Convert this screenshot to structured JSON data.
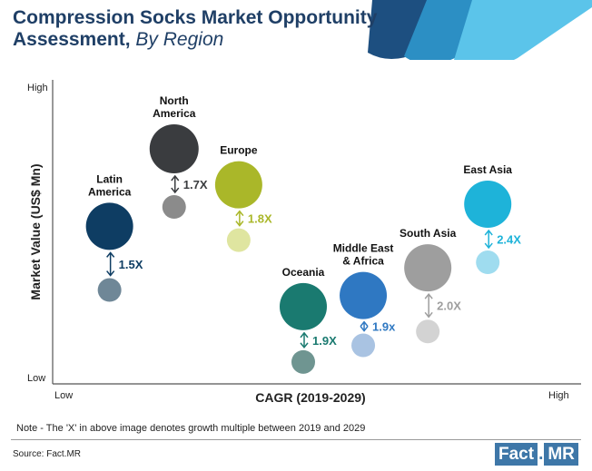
{
  "title": {
    "main": "Compression Socks Market Opportunity",
    "line2": "Assessment,",
    "line2_italic": "By Region"
  },
  "colors": {
    "title": "#1f3f66",
    "header_stripes": [
      "#1d4f80",
      "#2c8fc4",
      "#5bc4ea"
    ]
  },
  "chart_data": {
    "type": "bubble",
    "xlabel": "CAGR (2019-2029)",
    "ylabel": "Market Value (US$ Mn)",
    "x_tick_labels": [
      "Low",
      "High"
    ],
    "y_tick_labels": [
      "Low",
      "High"
    ],
    "grid": false,
    "series": [
      {
        "name": "Latin America",
        "label_lines": [
          "Latin",
          "America"
        ],
        "multiple_label": "1.5X",
        "color": "#0e3d63",
        "color_2019": "#6f8797",
        "x": 0.08,
        "y_2029": 0.52,
        "y_2019": 0.29,
        "size_2029": 26,
        "size_2019": 13
      },
      {
        "name": "North America",
        "label_lines": [
          "North",
          "America"
        ],
        "multiple_label": "1.7X",
        "color": "#3a3c3f",
        "color_2019": "#8b8b8b",
        "x": 0.22,
        "y_2029": 0.8,
        "y_2019": 0.59,
        "size_2029": 27,
        "size_2019": 13
      },
      {
        "name": "Europe",
        "label_lines": [
          "Europe"
        ],
        "multiple_label": "1.8X",
        "color": "#aab729",
        "color_2019": "#dfe5a0",
        "x": 0.36,
        "y_2029": 0.67,
        "y_2019": 0.47,
        "size_2029": 26,
        "size_2019": 13
      },
      {
        "name": "Oceania",
        "label_lines": [
          "Oceania"
        ],
        "multiple_label": "1.9X",
        "color": "#1a7a70",
        "color_2019": "#6f9591",
        "x": 0.5,
        "y_2029": 0.23,
        "y_2019": 0.03,
        "size_2029": 26,
        "size_2019": 13
      },
      {
        "name": "Middle East & Africa",
        "label_lines": [
          "Middle East",
          "& Africa"
        ],
        "multiple_label": "1.9x",
        "color": "#2f78c2",
        "color_2019": "#a9c3e2",
        "x": 0.63,
        "y_2029": 0.27,
        "y_2019": 0.09,
        "size_2029": 26,
        "size_2019": 13
      },
      {
        "name": "South Asia",
        "label_lines": [
          "South Asia"
        ],
        "multiple_label": "2.0X",
        "color": "#9e9e9e",
        "color_2019": "#d3d3d3",
        "x": 0.77,
        "y_2029": 0.37,
        "y_2019": 0.14,
        "size_2029": 26,
        "size_2019": 13
      },
      {
        "name": "East Asia",
        "label_lines": [
          "East Asia"
        ],
        "multiple_label": "2.4X",
        "color": "#1eb3d9",
        "color_2019": "#9fdcef",
        "x": 0.9,
        "y_2029": 0.6,
        "y_2019": 0.39,
        "size_2029": 26,
        "size_2019": 13
      }
    ]
  },
  "note": "Note - The 'X' in above image denotes growth multiple between 2019 and 2029",
  "source": "Source: Fact.MR",
  "logo": {
    "left": "Fact",
    "dot": ".",
    "right": "MR"
  }
}
